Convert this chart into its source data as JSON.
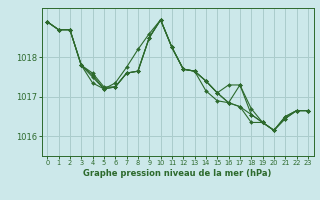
{
  "background_color": "#cce8ea",
  "grid_color": "#aacccc",
  "line_color": "#2d6a2d",
  "marker_color": "#2d6a2d",
  "xlabel": "Graphe pression niveau de la mer (hPa)",
  "xlabel_color": "#2d6a2d",
  "tick_color": "#2d6a2d",
  "xlim": [
    -0.5,
    23.5
  ],
  "ylim": [
    1015.5,
    1019.25
  ],
  "yticks": [
    1016,
    1017,
    1018
  ],
  "xticks": [
    0,
    1,
    2,
    3,
    4,
    5,
    6,
    7,
    8,
    9,
    10,
    11,
    12,
    13,
    14,
    15,
    16,
    17,
    18,
    19,
    20,
    21,
    22,
    23
  ],
  "series": [
    [
      1018.9,
      1018.7,
      1018.7,
      1017.8,
      1017.6,
      1017.25,
      1017.25,
      1017.6,
      1017.65,
      1018.5,
      1018.95,
      1018.25,
      1017.7,
      1017.65,
      1017.4,
      1017.1,
      1016.85,
      1016.75,
      1016.55,
      1016.35,
      1016.15,
      1016.5,
      1016.65,
      1016.65
    ],
    [
      1018.9,
      1018.7,
      1018.7,
      1017.8,
      1017.35,
      1017.2,
      1017.35,
      1017.75,
      1018.2,
      1018.6,
      1018.95,
      1018.25,
      1017.7,
      1017.65,
      1017.4,
      1017.1,
      1017.3,
      1017.3,
      1016.7,
      1016.35,
      1016.15,
      1016.5,
      1016.65,
      1016.65
    ],
    [
      1018.9,
      1018.7,
      1018.7,
      1017.8,
      1017.55,
      1017.2,
      1017.25,
      1017.6,
      1017.65,
      1018.5,
      1018.95,
      1018.25,
      1017.7,
      1017.65,
      1017.15,
      1016.9,
      1016.85,
      1016.75,
      1016.35,
      1016.35,
      1016.15,
      1016.45,
      1016.65,
      1016.65
    ],
    [
      1018.9,
      1018.7,
      1018.7,
      1017.8,
      1017.5,
      1017.2,
      1017.25,
      1017.6,
      1017.65,
      1018.5,
      1018.95,
      1018.25,
      1017.7,
      1017.65,
      1017.4,
      1017.1,
      1016.85,
      1017.3,
      1016.55,
      1016.35,
      1016.15,
      1016.45,
      1016.65,
      1016.65
    ]
  ]
}
